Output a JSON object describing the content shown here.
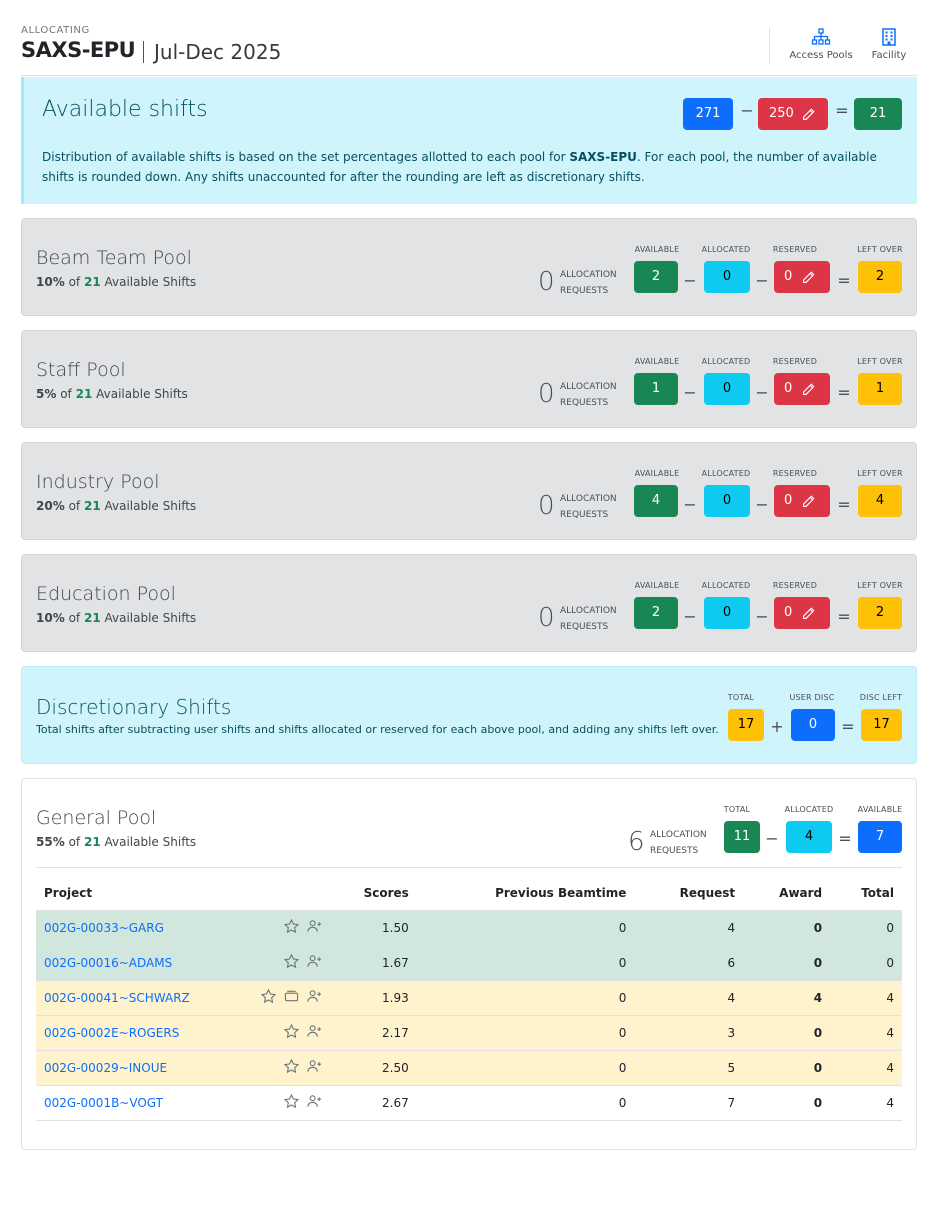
{
  "header": {
    "eyebrow": "ALLOCATING",
    "title": "SAXS-EPU",
    "period": "Jul-Dec 2025",
    "nav": [
      {
        "label": "Access Pools",
        "icon": "sitemap-icon"
      },
      {
        "label": "Facility",
        "icon": "building-icon"
      }
    ]
  },
  "available": {
    "title": "Available shifts",
    "total": "271",
    "minus": "−",
    "used": "250",
    "equals": "=",
    "result": "21",
    "desc_pre": "Distribution of available shifts is based on the set percentages allotted to each pool for ",
    "desc_bold": "SAXS-EPU",
    "desc_post": ". For each pool, the number of available shifts is rounded down. Any shifts unaccounted for after the rounding are left as discretionary shifts."
  },
  "labels": {
    "available": "AVAILABLE",
    "allocated": "ALLOCATED",
    "reserved": "RESERVED",
    "left_over": "LEFT OVER",
    "req_line1": "ALLOCATION",
    "req_line2": "REQUESTS",
    "of": "of",
    "available_shifts": "Available Shifts",
    "minus": "−",
    "equals": "=",
    "plus": "+"
  },
  "pools": [
    {
      "name": "Beam Team Pool",
      "pct": "10%",
      "of_total": "21",
      "requests": "0",
      "available": "2",
      "allocated": "0",
      "reserved": "0",
      "left_over": "2"
    },
    {
      "name": "Staff Pool",
      "pct": "5%",
      "of_total": "21",
      "requests": "0",
      "available": "1",
      "allocated": "0",
      "reserved": "0",
      "left_over": "1"
    },
    {
      "name": "Industry Pool",
      "pct": "20%",
      "of_total": "21",
      "requests": "0",
      "available": "4",
      "allocated": "0",
      "reserved": "0",
      "left_over": "4"
    },
    {
      "name": "Education Pool",
      "pct": "10%",
      "of_total": "21",
      "requests": "0",
      "available": "2",
      "allocated": "0",
      "reserved": "0",
      "left_over": "2"
    }
  ],
  "discretionary": {
    "title": "Discretionary Shifts",
    "subtitle": "Total shifts after subtracting user shifts and shifts allocated or reserved for each above pool, and adding any shifts left over.",
    "total_label": "TOTAL",
    "user_disc_label": "USER DISC",
    "disc_left_label": "DISC LEFT",
    "total": "17",
    "user_disc": "0",
    "disc_left": "17"
  },
  "general": {
    "name": "General Pool",
    "pct": "55%",
    "of_total": "21",
    "requests": "6",
    "total_label": "TOTAL",
    "allocated_label": "ALLOCATED",
    "available_label": "AVAILABLE",
    "total": "11",
    "allocated": "4",
    "available": "7",
    "columns": [
      "Project",
      "Scores",
      "Previous Beamtime",
      "Request",
      "Award",
      "Total"
    ],
    "rows": [
      {
        "project": "002G-00033~GARG",
        "score": "1.50",
        "prev": "0",
        "request": "4",
        "award": "0",
        "total": "0",
        "status": "green",
        "extra_icon": false
      },
      {
        "project": "002G-00016~ADAMS",
        "score": "1.67",
        "prev": "0",
        "request": "6",
        "award": "0",
        "total": "0",
        "status": "green",
        "extra_icon": false
      },
      {
        "project": "002G-00041~SCHWARZ",
        "score": "1.93",
        "prev": "0",
        "request": "4",
        "award": "4",
        "total": "4",
        "status": "yellow",
        "extra_icon": true
      },
      {
        "project": "002G-0002E~ROGERS",
        "score": "2.17",
        "prev": "0",
        "request": "3",
        "award": "0",
        "total": "4",
        "status": "yellow",
        "extra_icon": false
      },
      {
        "project": "002G-00029~INOUE",
        "score": "2.50",
        "prev": "0",
        "request": "5",
        "award": "0",
        "total": "4",
        "status": "yellow",
        "extra_icon": false
      },
      {
        "project": "002G-0001B~VOGT",
        "score": "2.67",
        "prev": "0",
        "request": "7",
        "award": "0",
        "total": "4",
        "status": "white",
        "extra_icon": false
      }
    ]
  },
  "colors": {
    "available": "#198754",
    "allocated": "#0dcaf0",
    "reserved": "#dc3545",
    "left_over": "#ffc107",
    "primary": "#0d6efd",
    "info_bg": "#cff4fc",
    "pool_bg": "#e2e3e5"
  }
}
